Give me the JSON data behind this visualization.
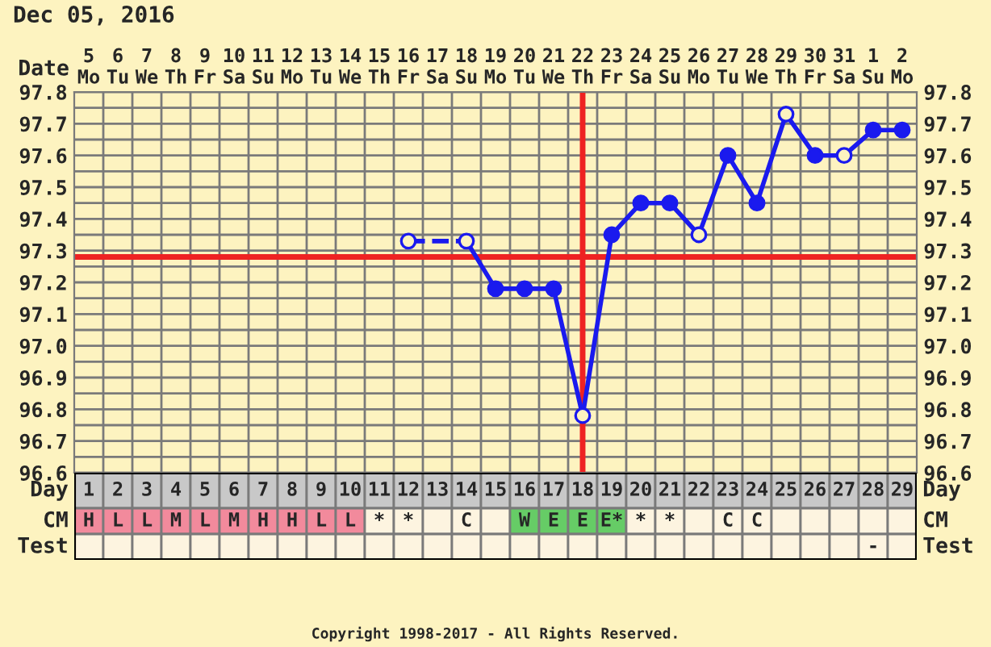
{
  "chart_data": [
    {
      "type": "line",
      "title": "Dec 05, 2016",
      "x2label": "Date",
      "categories": [
        "5\nMo",
        "6\nTu",
        "7\nWe",
        "8\nTh",
        "9\nFr",
        "10\nSa",
        "11\nSu",
        "12\nMo",
        "13\nTu",
        "14\nWe",
        "15\nTh",
        "16\nFr",
        "17\nSa",
        "18\nSu",
        "19\nMo",
        "20\nTu",
        "21\nWe",
        "22\nTh",
        "23\nFr",
        "24\nSa",
        "25\nSu",
        "26\nMo",
        "27\nTu",
        "28\nWe",
        "29\nTh",
        "30\nFr",
        "31\nSa",
        "1\nSu",
        "2\nMo"
      ],
      "series": [
        {
          "color": "#1a1aee",
          "values": [
            null,
            null,
            null,
            null,
            null,
            null,
            null,
            null,
            null,
            null,
            null,
            97.33,
            null,
            97.33,
            97.18,
            97.18,
            97.18,
            96.78,
            97.35,
            97.45,
            97.45,
            97.35,
            97.6,
            97.45,
            97.73,
            97.6,
            97.6,
            97.68,
            97.68
          ],
          "colors": [
            null,
            null,
            null,
            null,
            null,
            null,
            null,
            null,
            null,
            null,
            null,
            "#fdf3c0",
            null,
            "#fdf3c0",
            "#1a1aee",
            "#1a1aee",
            "#1a1aee",
            "#fdf3c0",
            "#1a1aee",
            "#1a1aee",
            "#1a1aee",
            "#fdf3c0",
            "#1a1aee",
            "#1a1aee",
            "#fdf3c0",
            "#1a1aee",
            "#fdf3c0",
            "#1a1aee",
            "#1a1aee"
          ]
        }
      ],
      "marker": "circle",
      "line_style": "solid",
      "ylim": [
        96.6,
        97.8
      ],
      "yticks": [
        96.6,
        96.7,
        96.8,
        96.9,
        {
          "value": 97.0,
          "label": "97.0"
        },
        97.1,
        97.2,
        97.3,
        97.4,
        97.5,
        97.6,
        97.7,
        97.8
      ],
      "y2lim": [
        96.6,
        97.8
      ],
      "y2ticks": [
        96.6,
        96.7,
        96.8,
        96.9,
        {
          "value": 97.0,
          "label": "97.0"
        },
        97.1,
        97.2,
        97.3,
        97.4,
        97.5,
        97.6,
        97.7,
        97.8
      ],
      "grid": true,
      "ref_lines": [
        {
          "axis": "y",
          "value": 97.28,
          "color": "#ee2222"
        },
        {
          "axis": "x",
          "value": "22\nTh",
          "color": "#ee2222"
        }
      ],
      "annotations": [
        "Copyright 1998-2017 - All Rights Reserved."
      ]
    },
    {
      "type": "heatmap",
      "xlabel": "Day",
      "categories": [
        "1",
        "2",
        "3",
        "4",
        "5",
        "6",
        "7",
        "8",
        "9",
        "10",
        "11",
        "12",
        "13",
        "14",
        "15",
        "16",
        "17",
        "18",
        "19",
        "20",
        "21",
        "22",
        "23",
        "24",
        "25",
        "26",
        "27",
        "28",
        "29"
      ],
      "y_categories": [
        "CM",
        "Test"
      ],
      "y2_categories": [
        "CM",
        "Test"
      ],
      "cells": [
        [
          null,
          null,
          null,
          null,
          null,
          null,
          null,
          null,
          null,
          null,
          null,
          null,
          null,
          null,
          null,
          null,
          null,
          null,
          null,
          null,
          null,
          null,
          null,
          null,
          null,
          null,
          null,
          null,
          null
        ],
        [
          null,
          null,
          null,
          null,
          null,
          null,
          null,
          null,
          null,
          null,
          null,
          null,
          null,
          null,
          null,
          null,
          null,
          null,
          null,
          null,
          null,
          null,
          null,
          null,
          null,
          null,
          null,
          null,
          null
        ]
      ],
      "cell_labels": [
        [
          "H",
          "L",
          "L",
          "M",
          "L",
          "M",
          "H",
          "H",
          "L",
          "L",
          "*",
          "*",
          null,
          "C",
          null,
          "W",
          "E",
          "E",
          "E*",
          "*",
          "*",
          null,
          "C",
          "C",
          null,
          null,
          null,
          null,
          null
        ],
        [
          null,
          null,
          null,
          null,
          null,
          null,
          null,
          null,
          null,
          null,
          null,
          null,
          null,
          null,
          null,
          null,
          null,
          null,
          null,
          null,
          null,
          null,
          null,
          null,
          null,
          null,
          null,
          "-",
          null
        ]
      ],
      "colors": [
        [
          "#f28a9c",
          "#f28a9c",
          "#f28a9c",
          "#f28a9c",
          "#f28a9c",
          "#f28a9c",
          "#f28a9c",
          "#f28a9c",
          "#f28a9c",
          "#f28a9c",
          null,
          null,
          null,
          null,
          null,
          "#66cc66",
          "#66cc66",
          "#66cc66",
          "#66cc66",
          null,
          null,
          null,
          null,
          null,
          null,
          null,
          null,
          null,
          null
        ],
        [
          null,
          null,
          null,
          null,
          null,
          null,
          null,
          null,
          null,
          null,
          null,
          null,
          null,
          null,
          null,
          null,
          null,
          null,
          null,
          null,
          null,
          null,
          null,
          null,
          null,
          null,
          null,
          null,
          null
        ]
      ]
    }
  ]
}
